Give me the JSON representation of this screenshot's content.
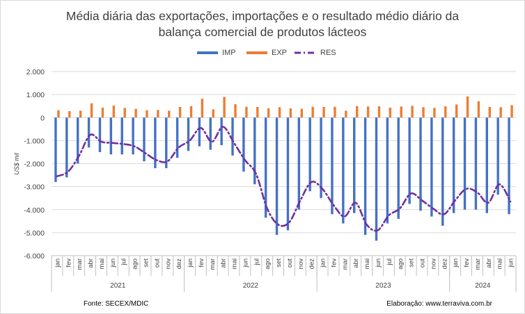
{
  "title_line1": "Média diária das exportações, importações e o resultado médio diário da",
  "title_line2": "balança comercial de produtos lácteos",
  "legend": {
    "imp": "IMP",
    "exp": "EXP",
    "res": "RES"
  },
  "colors": {
    "imp": "#4472C4",
    "exp": "#ED7D31",
    "res": "#7030A0",
    "grid": "#d9d9d9",
    "axis": "#bfbfbf"
  },
  "footer": {
    "source": "Fonte: SECEX/MDIC",
    "credit": "Elaboração: www.terraviva.com.br"
  },
  "chart_data": {
    "type": "bar",
    "ylabel": "US$ mil",
    "ylim": [
      -6000,
      2000
    ],
    "yticks": [
      "2.000",
      "1.000",
      "0",
      "-1.000",
      "-2.000",
      "-3.000",
      "-4.000",
      "-5.000",
      "-6.000"
    ],
    "grid": true,
    "legend_position": "top",
    "categories": [
      "jan",
      "fev",
      "mar",
      "abr",
      "mai",
      "jun",
      "jul",
      "ago",
      "set",
      "out",
      "nov",
      "dez",
      "jan",
      "fev",
      "mar",
      "abr",
      "mai",
      "jun",
      "jul",
      "ago",
      "set",
      "out",
      "nov",
      "dez",
      "jan",
      "fev",
      "mar",
      "abr",
      "mai",
      "jun",
      "jul",
      "ago",
      "set",
      "out",
      "nov",
      "dez",
      "jan",
      "fev",
      "mar",
      "abr",
      "mai",
      "jun"
    ],
    "years": [
      {
        "label": "2021",
        "count": 12
      },
      {
        "label": "2022",
        "count": 12
      },
      {
        "label": "2023",
        "count": 12
      },
      {
        "label": "2024",
        "count": 6
      }
    ],
    "series": [
      {
        "name": "IMP",
        "type": "bar",
        "values": [
          -2800,
          -2600,
          -2000,
          -1300,
          -1500,
          -1600,
          -1600,
          -1600,
          -1900,
          -2200,
          -2200,
          -1750,
          -1450,
          -1250,
          -1400,
          -1200,
          -1650,
          -2350,
          -2900,
          -4350,
          -5100,
          -4900,
          -4000,
          -3200,
          -3500,
          -4200,
          -4600,
          -4150,
          -5100,
          -5350,
          -4600,
          -4400,
          -3750,
          -4050,
          -4300,
          -4700,
          -4150,
          -4000,
          -4000,
          -4150,
          -3350,
          -4200
        ]
      },
      {
        "name": "EXP",
        "type": "bar",
        "values": [
          320,
          280,
          300,
          620,
          430,
          520,
          420,
          380,
          320,
          330,
          300,
          460,
          500,
          820,
          360,
          900,
          580,
          470,
          460,
          400,
          450,
          400,
          380,
          470,
          460,
          470,
          300,
          500,
          480,
          490,
          430,
          480,
          510,
          450,
          420,
          490,
          570,
          920,
          710,
          460,
          450,
          540
        ]
      },
      {
        "name": "RES",
        "type": "line",
        "style": "dash-dot",
        "values": [
          -2550,
          -2350,
          -1650,
          -750,
          -1050,
          -1100,
          -1150,
          -1250,
          -1550,
          -1850,
          -1900,
          -1300,
          -1000,
          -450,
          -1050,
          -400,
          -1100,
          -1850,
          -2450,
          -3950,
          -4650,
          -4550,
          -3600,
          -2800,
          -3100,
          -3800,
          -4300,
          -3700,
          -4650,
          -4900,
          -4250,
          -3950,
          -3300,
          -3600,
          -3950,
          -4200,
          -3600,
          -3100,
          -3250,
          -3700,
          -2900,
          -3650
        ]
      }
    ]
  }
}
